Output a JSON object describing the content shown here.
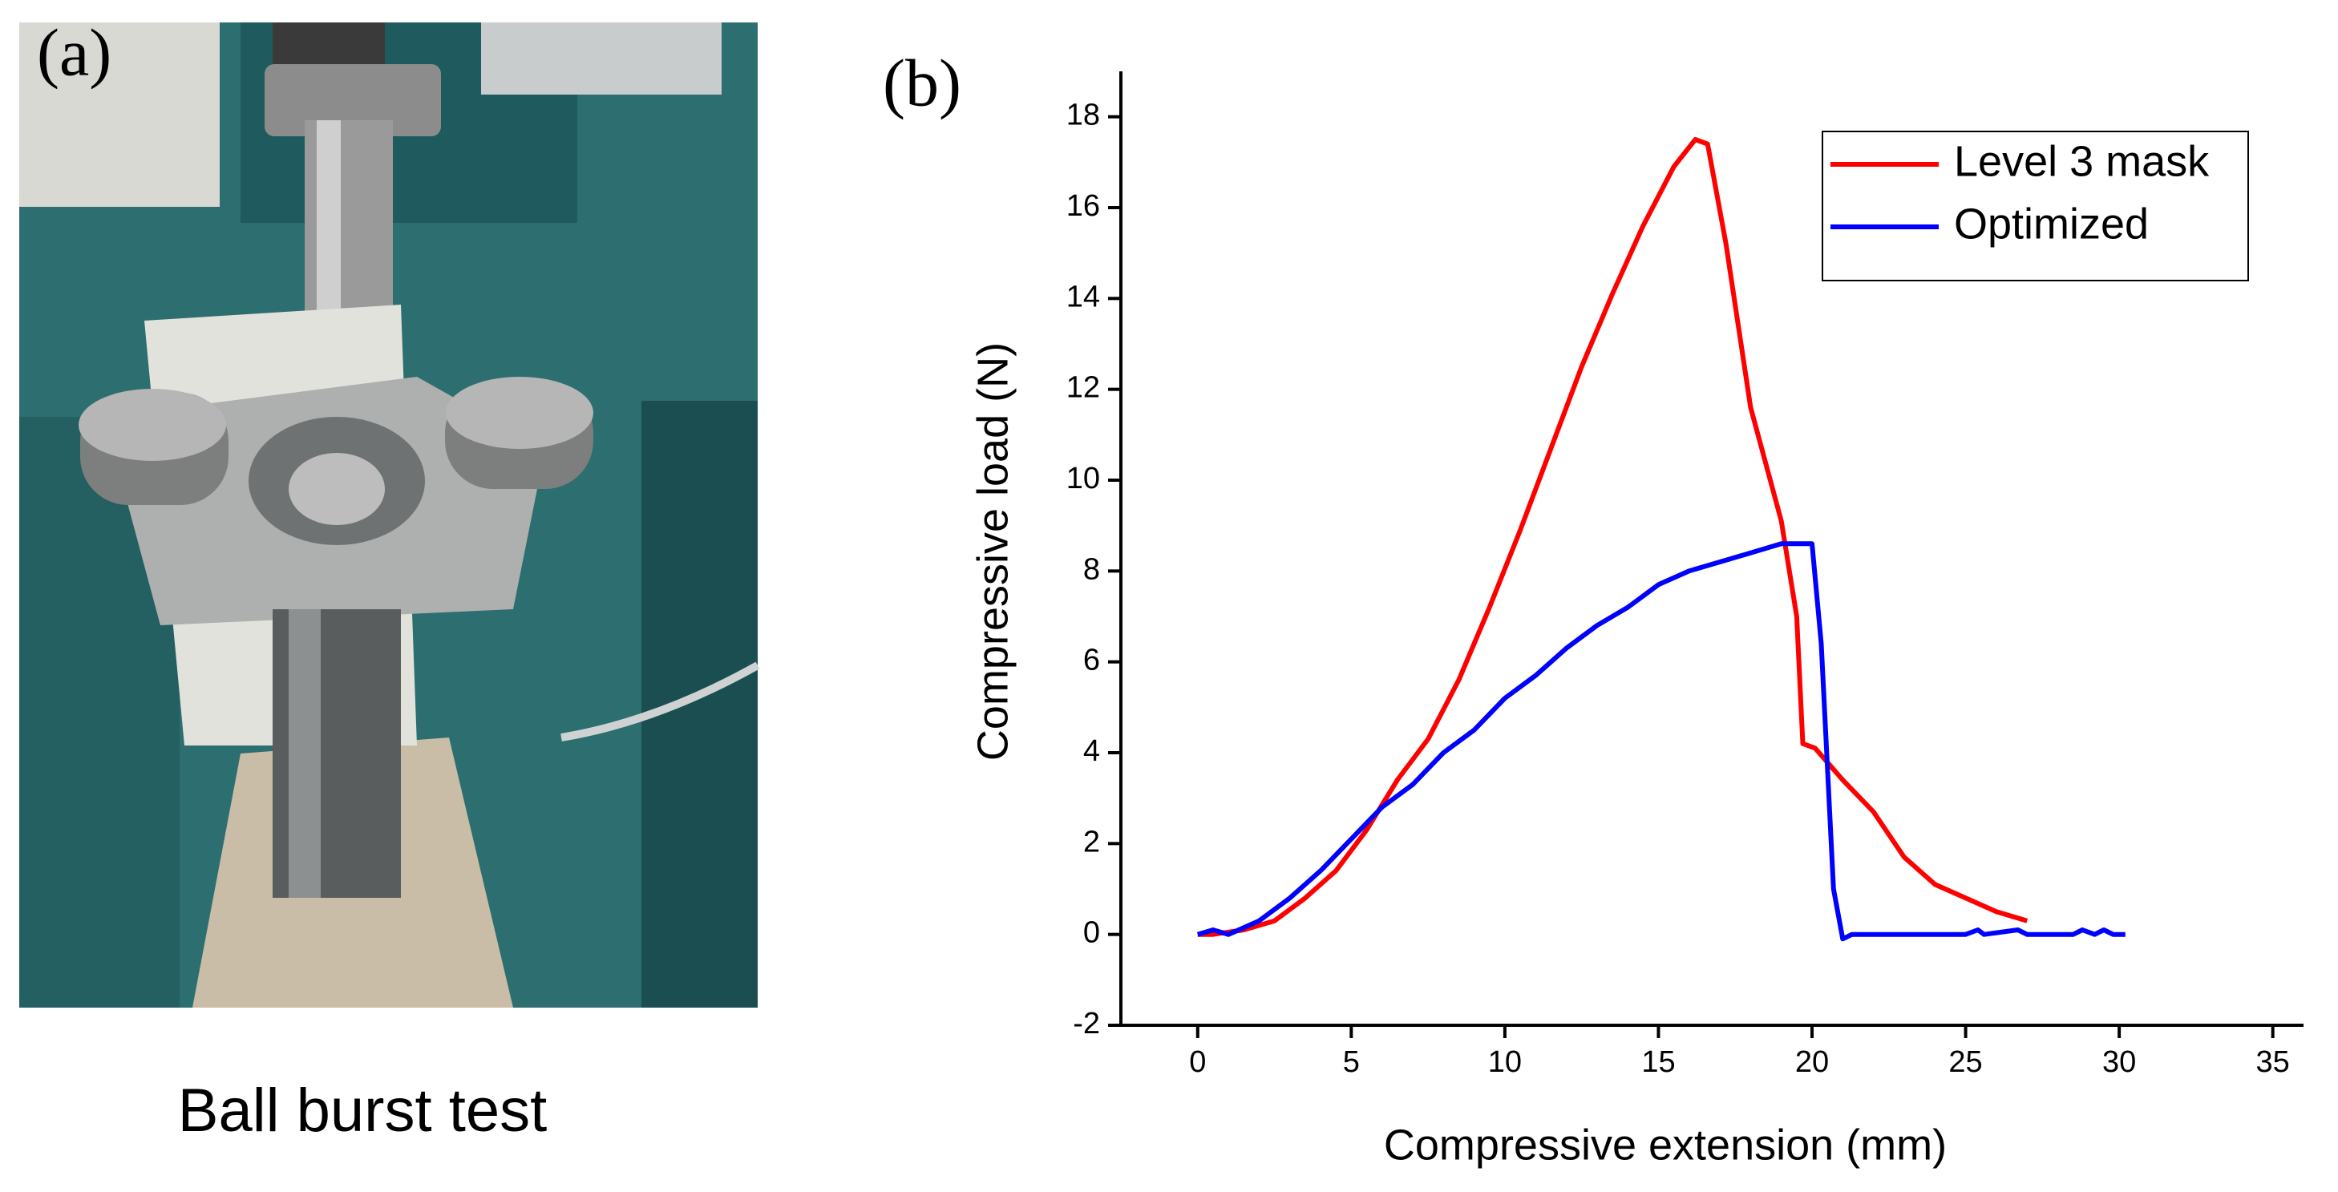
{
  "panel_a": {
    "label": "(a)",
    "caption": "Ball burst test"
  },
  "chart_data": {
    "type": "line",
    "panel_label": "(b)",
    "x_label": "Compressive extension (mm)",
    "y_label": "Compressive load (N)",
    "xlim": [
      -2.5,
      36
    ],
    "ylim": [
      -2,
      19
    ],
    "xticks": [
      0,
      5,
      10,
      15,
      20,
      25,
      30,
      35
    ],
    "yticks": [
      -2,
      0,
      2,
      4,
      6,
      8,
      10,
      12,
      14,
      16,
      18
    ],
    "legend": "upper right",
    "series": [
      {
        "name": "Level 3 mask",
        "color": "#ff0000",
        "x": [
          0,
          0.5,
          1.5,
          2.5,
          3.5,
          4.5,
          5.5,
          6.5,
          7.5,
          8.5,
          9.5,
          10.5,
          11.5,
          12.5,
          13.5,
          14.5,
          15.5,
          16.2,
          16.6,
          17.2,
          18,
          19,
          19.5,
          19.7,
          20.1,
          21,
          22,
          23,
          24,
          25,
          26,
          27
        ],
        "values": [
          0,
          0,
          0.1,
          0.3,
          0.8,
          1.4,
          2.3,
          3.4,
          4.3,
          5.6,
          7.2,
          8.9,
          10.7,
          12.5,
          14.1,
          15.6,
          16.9,
          17.5,
          17.4,
          15.2,
          11.6,
          9.1,
          7,
          4.2,
          4.1,
          3.4,
          2.7,
          1.7,
          1.1,
          0.8,
          0.5,
          0.3
        ]
      },
      {
        "name": "Optimized",
        "color": "#0000ff",
        "x": [
          0,
          0.5,
          1,
          2,
          3,
          4,
          5,
          6,
          7,
          8,
          9,
          10,
          11,
          12,
          13,
          14,
          15,
          16,
          17,
          18,
          19,
          20,
          20.3,
          20.7,
          21,
          21.3,
          25,
          25.4,
          25.6,
          26.7,
          27,
          28.5,
          28.8,
          29.2,
          29.5,
          29.8,
          30.2
        ],
        "values": [
          0,
          0.1,
          0,
          0.3,
          0.8,
          1.4,
          2.1,
          2.8,
          3.3,
          4,
          4.5,
          5.2,
          5.7,
          6.3,
          6.8,
          7.2,
          7.7,
          8,
          8.2,
          8.4,
          8.6,
          8.6,
          6.4,
          1,
          -0.1,
          0,
          0,
          0.1,
          0,
          0.1,
          0,
          0,
          0.1,
          0,
          0.1,
          0,
          0
        ]
      }
    ]
  }
}
